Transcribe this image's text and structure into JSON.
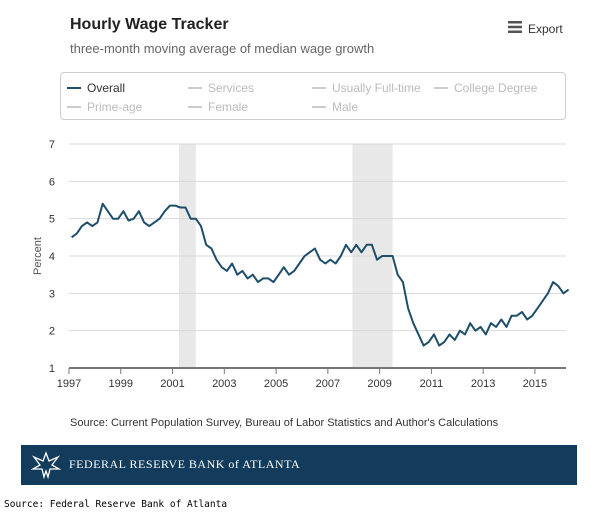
{
  "header": {
    "title": "Hourly Wage Tracker",
    "subtitle": "three-month moving average of median wage growth",
    "export_label": "Export",
    "export_icon": "hamburger-menu-icon"
  },
  "legend": {
    "items": [
      {
        "label": "Overall",
        "active": true,
        "color": "#1f4e6b"
      },
      {
        "label": "Services",
        "active": false,
        "color": "#cccccc"
      },
      {
        "label": "Usually Full-time",
        "active": false,
        "color": "#cccccc"
      },
      {
        "label": "College Degree",
        "active": false,
        "color": "#cccccc"
      },
      {
        "label": "Prime-age",
        "active": false,
        "color": "#cccccc"
      },
      {
        "label": "Female",
        "active": false,
        "color": "#cccccc"
      },
      {
        "label": "Male",
        "active": false,
        "color": "#cccccc"
      }
    ]
  },
  "chart_data": {
    "type": "line",
    "title": "Hourly Wage Tracker",
    "subtitle": "three-month moving average of median wage growth",
    "xlabel": "",
    "ylabel": "Percent",
    "xlim": [
      1997,
      2016.2
    ],
    "ylim": [
      1,
      7
    ],
    "x_ticks": [
      "1997",
      "1999",
      "2001",
      "2003",
      "2005",
      "2007",
      "2009",
      "2011",
      "2013",
      "2015"
    ],
    "y_ticks": [
      "1",
      "2",
      "3",
      "4",
      "5",
      "6",
      "7"
    ],
    "grid": true,
    "legend_position": "top",
    "recession_bands": [
      [
        2001.25,
        2001.9
      ],
      [
        2007.95,
        2009.5
      ]
    ],
    "colors": {
      "line": "#1f4e6b",
      "recession": "#e8e8e8",
      "grid": "#d9d9d9",
      "axis": "#777777"
    },
    "series": [
      {
        "name": "Overall",
        "points": [
          [
            1997.1,
            4.5
          ],
          [
            1997.3,
            4.6
          ],
          [
            1997.5,
            4.8
          ],
          [
            1997.7,
            4.9
          ],
          [
            1997.9,
            4.8
          ],
          [
            1998.1,
            4.9
          ],
          [
            1998.3,
            5.4
          ],
          [
            1998.5,
            5.2
          ],
          [
            1998.7,
            5.0
          ],
          [
            1998.9,
            5.0
          ],
          [
            1999.1,
            5.2
          ],
          [
            1999.3,
            4.95
          ],
          [
            1999.5,
            5.0
          ],
          [
            1999.7,
            5.2
          ],
          [
            1999.9,
            4.9
          ],
          [
            2000.1,
            4.8
          ],
          [
            2000.3,
            4.9
          ],
          [
            2000.5,
            5.0
          ],
          [
            2000.7,
            5.2
          ],
          [
            2000.9,
            5.35
          ],
          [
            2001.1,
            5.35
          ],
          [
            2001.3,
            5.3
          ],
          [
            2001.5,
            5.3
          ],
          [
            2001.7,
            5.0
          ],
          [
            2001.9,
            5.0
          ],
          [
            2002.1,
            4.8
          ],
          [
            2002.3,
            4.3
          ],
          [
            2002.5,
            4.2
          ],
          [
            2002.7,
            3.9
          ],
          [
            2002.9,
            3.7
          ],
          [
            2003.1,
            3.6
          ],
          [
            2003.3,
            3.8
          ],
          [
            2003.5,
            3.5
          ],
          [
            2003.7,
            3.6
          ],
          [
            2003.9,
            3.4
          ],
          [
            2004.1,
            3.5
          ],
          [
            2004.3,
            3.3
          ],
          [
            2004.5,
            3.4
          ],
          [
            2004.7,
            3.4
          ],
          [
            2004.9,
            3.3
          ],
          [
            2005.1,
            3.5
          ],
          [
            2005.3,
            3.7
          ],
          [
            2005.5,
            3.5
          ],
          [
            2005.7,
            3.6
          ],
          [
            2005.9,
            3.8
          ],
          [
            2006.1,
            4.0
          ],
          [
            2006.3,
            4.1
          ],
          [
            2006.5,
            4.2
          ],
          [
            2006.7,
            3.9
          ],
          [
            2006.9,
            3.8
          ],
          [
            2007.1,
            3.9
          ],
          [
            2007.3,
            3.8
          ],
          [
            2007.5,
            4.0
          ],
          [
            2007.7,
            4.3
          ],
          [
            2007.9,
            4.1
          ],
          [
            2008.1,
            4.3
          ],
          [
            2008.3,
            4.1
          ],
          [
            2008.5,
            4.3
          ],
          [
            2008.7,
            4.3
          ],
          [
            2008.9,
            3.9
          ],
          [
            2009.1,
            4.0
          ],
          [
            2009.3,
            4.0
          ],
          [
            2009.5,
            4.0
          ],
          [
            2009.7,
            3.5
          ],
          [
            2009.9,
            3.3
          ],
          [
            2010.1,
            2.6
          ],
          [
            2010.3,
            2.2
          ],
          [
            2010.5,
            1.9
          ],
          [
            2010.7,
            1.6
          ],
          [
            2010.9,
            1.7
          ],
          [
            2011.1,
            1.9
          ],
          [
            2011.3,
            1.6
          ],
          [
            2011.5,
            1.7
          ],
          [
            2011.7,
            1.9
          ],
          [
            2011.9,
            1.75
          ],
          [
            2012.1,
            2.0
          ],
          [
            2012.3,
            1.9
          ],
          [
            2012.5,
            2.2
          ],
          [
            2012.7,
            2.0
          ],
          [
            2012.9,
            2.1
          ],
          [
            2013.1,
            1.9
          ],
          [
            2013.3,
            2.2
          ],
          [
            2013.5,
            2.1
          ],
          [
            2013.7,
            2.3
          ],
          [
            2013.9,
            2.1
          ],
          [
            2014.1,
            2.4
          ],
          [
            2014.3,
            2.4
          ],
          [
            2014.5,
            2.5
          ],
          [
            2014.7,
            2.3
          ],
          [
            2014.9,
            2.4
          ],
          [
            2015.1,
            2.6
          ],
          [
            2015.3,
            2.8
          ],
          [
            2015.5,
            3.0
          ],
          [
            2015.7,
            3.3
          ],
          [
            2015.9,
            3.2
          ],
          [
            2016.1,
            3.0
          ],
          [
            2016.3,
            3.1
          ]
        ]
      }
    ]
  },
  "source_note": "Source: Current Population Survey, Bureau of Labor Statistics and Author's Calculations",
  "banner": {
    "text": "FEDERAL RESERVE BANK of ATLANTA",
    "logo_icon": "eagle-logo-icon"
  },
  "footer_source": "Source: Federal Reserve Bank of Atlanta"
}
